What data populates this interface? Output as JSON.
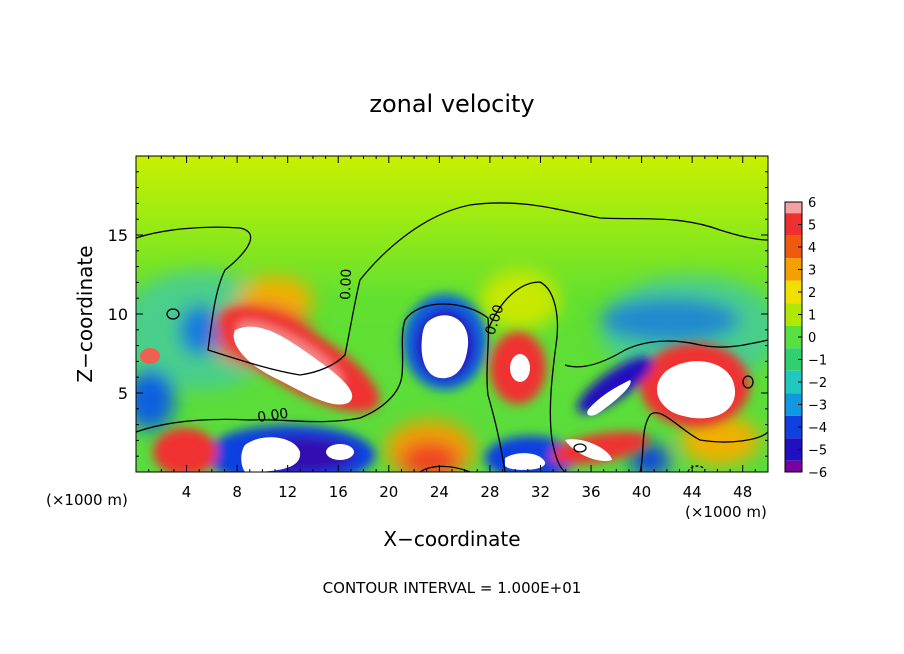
{
  "chart_data": {
    "type": "heatmap",
    "title": "zonal velocity",
    "xlabel": "X−coordinate",
    "ylabel": "Z−coordinate",
    "x_scale_left": "(×1000 m)",
    "x_scale_right": "(×1000 m)",
    "footer": "CONTOUR INTERVAL = 1.000E+01",
    "xlim": [
      0,
      50
    ],
    "ylim": [
      0,
      20
    ],
    "x_ticks": [
      4,
      8,
      12,
      16,
      20,
      24,
      28,
      32,
      36,
      40,
      44,
      48
    ],
    "x_tick_labels": [
      "4",
      "8",
      "12",
      "16",
      "20",
      "24",
      "28",
      "32",
      "36",
      "40",
      "44",
      "48"
    ],
    "y_ticks": [
      5,
      10,
      15
    ],
    "y_tick_labels": [
      "5",
      "10",
      "15"
    ],
    "contour_label": "0.00",
    "colorbar": {
      "range": [
        -6,
        6
      ],
      "ticks": [
        6,
        5,
        4,
        3,
        2,
        1,
        0,
        -1,
        -2,
        -3,
        -4,
        -5,
        -6
      ],
      "tick_labels": [
        "6",
        "5",
        "4",
        "3",
        "2",
        "1",
        "0",
        "−1",
        "−2",
        "−3",
        "−4",
        "−5",
        "−6"
      ],
      "colors": [
        "#f4a0a4",
        "#f03030",
        "#f05a10",
        "#f5a000",
        "#f0e000",
        "#b0e800",
        "#58e040",
        "#30d070",
        "#20c8c0",
        "#1098e0",
        "#1040e0",
        "#2010c0",
        "#7a00a0"
      ]
    },
    "features": [
      {
        "kind": "positive-max",
        "x": 11,
        "z": 7
      },
      {
        "kind": "positive-max",
        "x": 16,
        "z": 5
      },
      {
        "kind": "positive-max",
        "x": 5,
        "z": 1.5
      },
      {
        "kind": "positive-max",
        "x": 30,
        "z": 7
      },
      {
        "kind": "positive-max",
        "x": 44,
        "z": 5.5
      },
      {
        "kind": "negative-min",
        "x": 25,
        "z": 8
      },
      {
        "kind": "negative-min",
        "x": 12,
        "z": 2
      },
      {
        "kind": "negative-min",
        "x": 37,
        "z": 5
      },
      {
        "kind": "negative-min",
        "x": 40,
        "z": 10
      },
      {
        "kind": "negative-min",
        "x": 31,
        "z": 1
      }
    ]
  }
}
